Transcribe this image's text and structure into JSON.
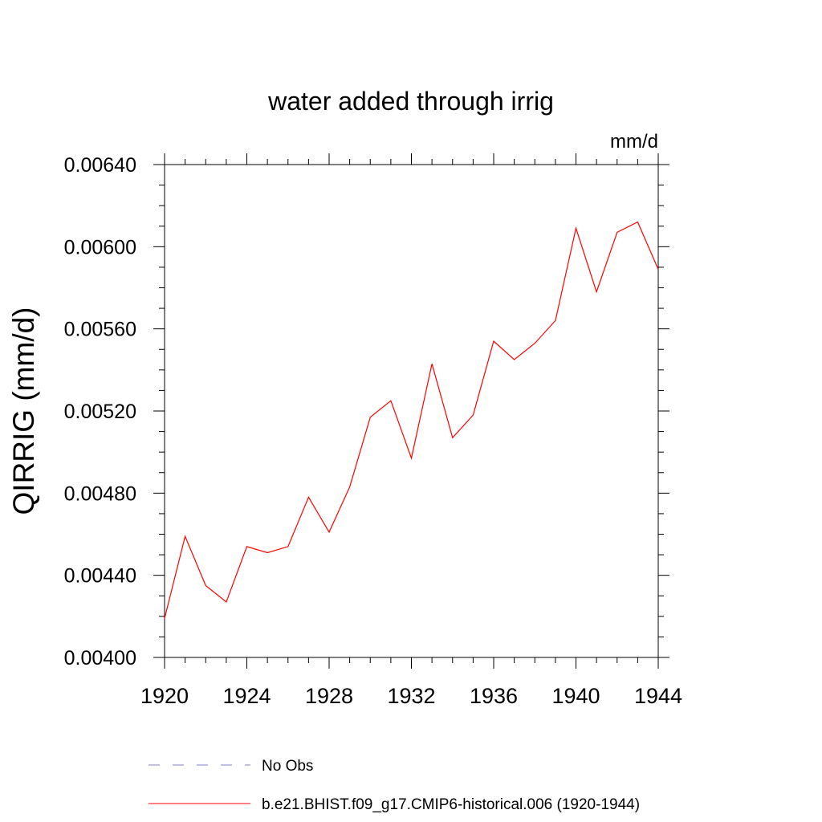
{
  "chart_data": {
    "type": "line",
    "title": "water added through irrig",
    "units_label": "mm/d",
    "ylabel": "QIRRIG  (mm/d)",
    "xlabel": "",
    "xlim": [
      1920,
      1944
    ],
    "ylim": [
      0.004,
      0.0064
    ],
    "x_ticks": [
      1920,
      1924,
      1928,
      1932,
      1936,
      1940,
      1944
    ],
    "x_tick_labels": [
      "1920",
      "1924",
      "1928",
      "1932",
      "1936",
      "1940",
      "1944"
    ],
    "y_ticks": [
      0.004,
      0.0044,
      0.0048,
      0.0052,
      0.0056,
      0.006,
      0.0064
    ],
    "y_tick_labels": [
      "0.00400",
      "0.00440",
      "0.00480",
      "0.00520",
      "0.00560",
      "0.00600",
      "0.00640"
    ],
    "grid": false,
    "legend_position": "bottom",
    "series": [
      {
        "name": "b.e21.BHIST.f09_g17.CMIP6-historical.006 (1920-1944)",
        "color": "#ff0000",
        "dash": "solid",
        "x": [
          1920,
          1921,
          1922,
          1923,
          1924,
          1925,
          1926,
          1927,
          1928,
          1929,
          1930,
          1931,
          1932,
          1933,
          1934,
          1935,
          1936,
          1937,
          1938,
          1939,
          1940,
          1941,
          1942,
          1943,
          1944
        ],
        "y": [
          0.00419,
          0.00459,
          0.00435,
          0.00427,
          0.00454,
          0.00451,
          0.00454,
          0.00478,
          0.00461,
          0.00483,
          0.00517,
          0.00525,
          0.00497,
          0.00543,
          0.00507,
          0.00518,
          0.00554,
          0.00545,
          0.00553,
          0.00564,
          0.00609,
          0.00578,
          0.00607,
          0.00612,
          0.00589
        ]
      }
    ],
    "legend": [
      {
        "label": "No Obs",
        "color": "#8080c8",
        "dash": "dashed"
      },
      {
        "label": "b.e21.BHIST.f09_g17.CMIP6-historical.006 (1920-1944)",
        "color": "#ff0000",
        "dash": "solid"
      }
    ]
  }
}
